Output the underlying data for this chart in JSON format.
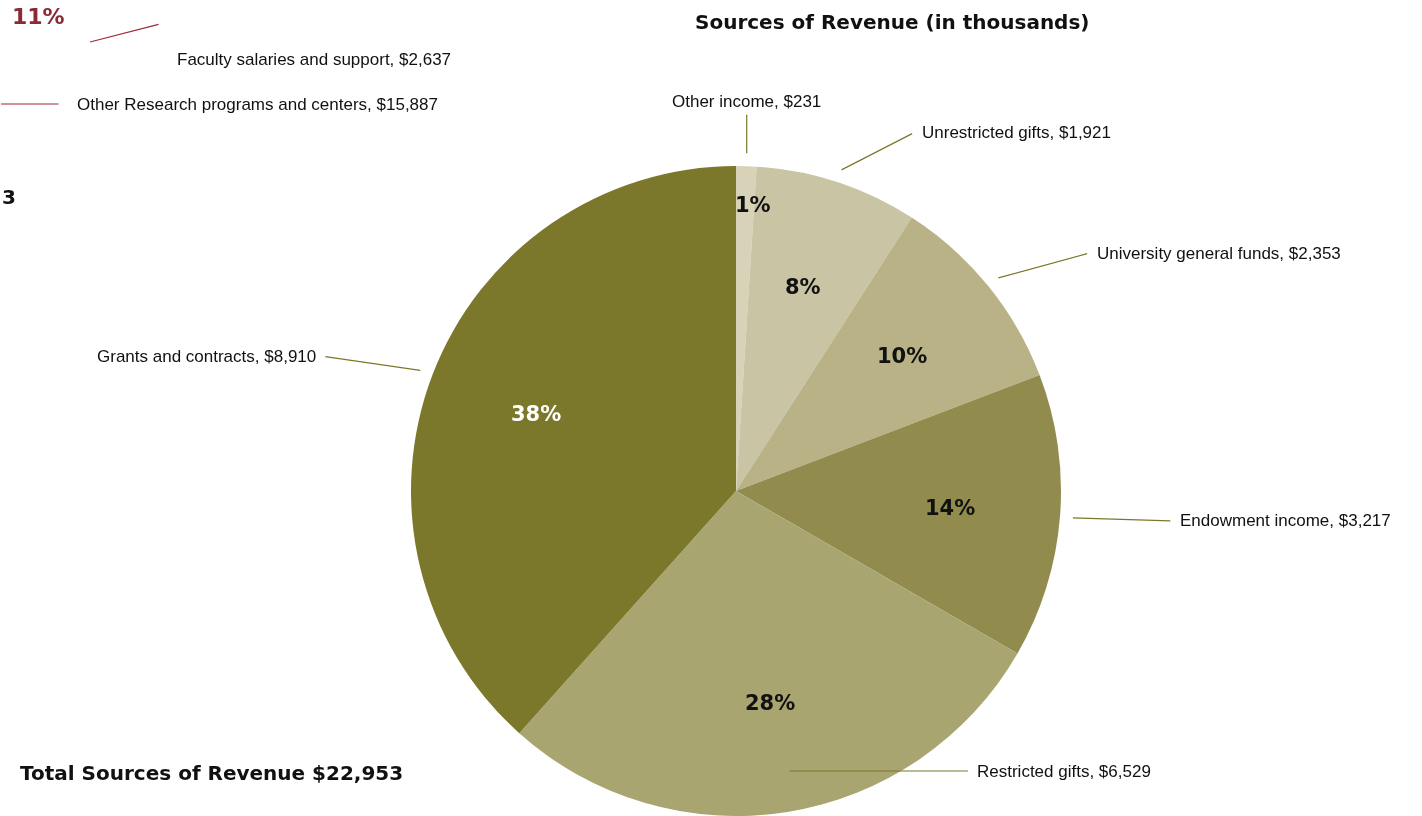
{
  "chart_data": [
    {
      "type": "other",
      "annotations": [
        "11%",
        "Faculty salaries and support, $2,637",
        "Other Research programs and centers, $15,887",
        "3"
      ]
    },
    {
      "type": "pie",
      "title": "Sources of Revenue (in thousands)",
      "categories": [
        "Other income, $231",
        "Unrestricted gifts, $1,921",
        "University general funds, $2,353",
        "Endowment income, $3,217",
        "Restricted gifts, $6,529",
        "Grants and contracts, $8,910"
      ],
      "values": [
        1,
        8,
        10,
        14,
        28,
        38
      ],
      "value_labels": [
        "1%",
        "8%",
        "10%",
        "14%",
        "28%",
        "38%"
      ],
      "colors": [
        "#d8d3b8",
        "#c9c4a3",
        "#b8b286",
        "#918c4d",
        "#a9a570",
        "#7b782b"
      ],
      "annotations": [
        "Total Sources of Revenue $22,953"
      ],
      "legend": false
    }
  ]
}
